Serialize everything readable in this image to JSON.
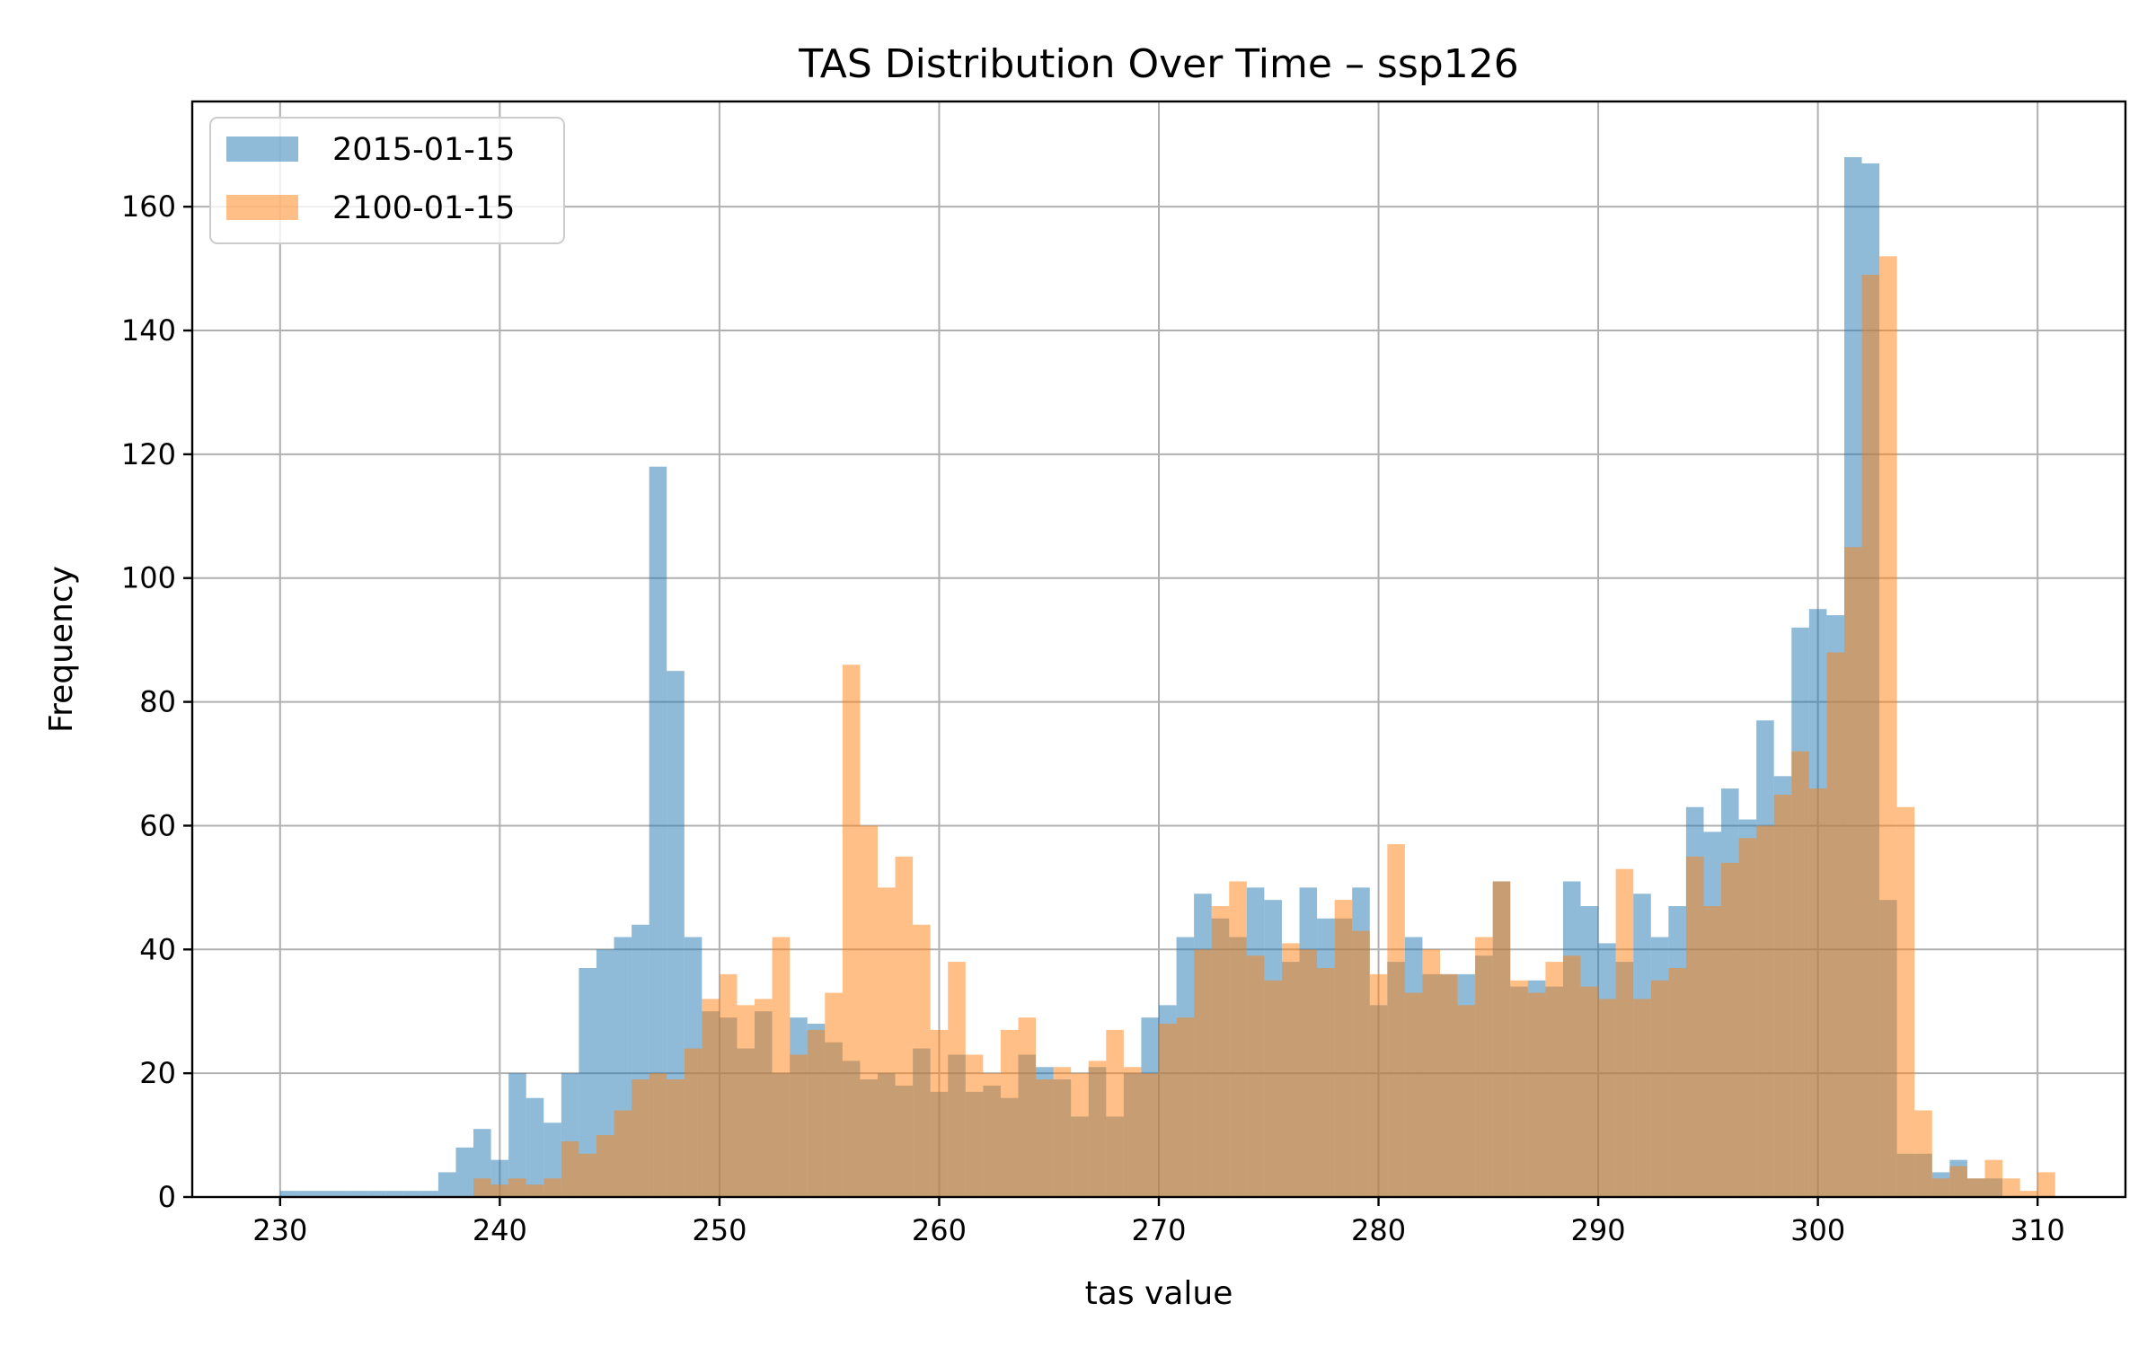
{
  "chart_data": {
    "type": "bar",
    "title": "TAS Distribution Over Time – ssp126",
    "xlabel": "tas value",
    "ylabel": "Frequency",
    "xlim": [
      226,
      314
    ],
    "ylim": [
      0,
      177
    ],
    "xticks": [
      230,
      240,
      250,
      260,
      270,
      280,
      290,
      300,
      310
    ],
    "yticks": [
      0,
      20,
      40,
      60,
      80,
      100,
      120,
      140,
      160
    ],
    "grid": true,
    "legend": "top-left",
    "bin_width": 0.8,
    "series": [
      {
        "name": "2015-01-15",
        "color": "#1f77b4",
        "opacity": 0.5,
        "bins": [
          {
            "x": 230.0,
            "y": 1
          },
          {
            "x": 230.8,
            "y": 1
          },
          {
            "x": 231.6,
            "y": 1
          },
          {
            "x": 232.4,
            "y": 1
          },
          {
            "x": 233.2,
            "y": 1
          },
          {
            "x": 234.0,
            "y": 1
          },
          {
            "x": 234.8,
            "y": 1
          },
          {
            "x": 235.6,
            "y": 1
          },
          {
            "x": 236.4,
            "y": 1
          },
          {
            "x": 237.2,
            "y": 4
          },
          {
            "x": 238.0,
            "y": 8
          },
          {
            "x": 238.8,
            "y": 11
          },
          {
            "x": 239.6,
            "y": 6
          },
          {
            "x": 240.4,
            "y": 20
          },
          {
            "x": 241.2,
            "y": 16
          },
          {
            "x": 242.0,
            "y": 12
          },
          {
            "x": 242.8,
            "y": 20
          },
          {
            "x": 243.6,
            "y": 37
          },
          {
            "x": 244.4,
            "y": 40
          },
          {
            "x": 245.2,
            "y": 42
          },
          {
            "x": 246.0,
            "y": 44
          },
          {
            "x": 246.8,
            "y": 118
          },
          {
            "x": 247.6,
            "y": 85
          },
          {
            "x": 248.4,
            "y": 42
          },
          {
            "x": 249.2,
            "y": 30
          },
          {
            "x": 250.0,
            "y": 29
          },
          {
            "x": 250.8,
            "y": 24
          },
          {
            "x": 251.6,
            "y": 30
          },
          {
            "x": 252.4,
            "y": 20
          },
          {
            "x": 253.2,
            "y": 29
          },
          {
            "x": 254.0,
            "y": 28
          },
          {
            "x": 254.8,
            "y": 25
          },
          {
            "x": 255.6,
            "y": 22
          },
          {
            "x": 256.4,
            "y": 19
          },
          {
            "x": 257.2,
            "y": 20
          },
          {
            "x": 258.0,
            "y": 18
          },
          {
            "x": 258.8,
            "y": 24
          },
          {
            "x": 259.6,
            "y": 17
          },
          {
            "x": 260.4,
            "y": 23
          },
          {
            "x": 261.2,
            "y": 17
          },
          {
            "x": 262.0,
            "y": 18
          },
          {
            "x": 262.8,
            "y": 16
          },
          {
            "x": 263.6,
            "y": 23
          },
          {
            "x": 264.4,
            "y": 21
          },
          {
            "x": 265.2,
            "y": 19
          },
          {
            "x": 266.0,
            "y": 13
          },
          {
            "x": 266.8,
            "y": 21
          },
          {
            "x": 267.6,
            "y": 13
          },
          {
            "x": 268.4,
            "y": 20
          },
          {
            "x": 269.2,
            "y": 29
          },
          {
            "x": 270.0,
            "y": 31
          },
          {
            "x": 270.8,
            "y": 42
          },
          {
            "x": 271.6,
            "y": 49
          },
          {
            "x": 272.4,
            "y": 45
          },
          {
            "x": 273.2,
            "y": 42
          },
          {
            "x": 274.0,
            "y": 50
          },
          {
            "x": 274.8,
            "y": 48
          },
          {
            "x": 275.6,
            "y": 38
          },
          {
            "x": 276.4,
            "y": 50
          },
          {
            "x": 277.2,
            "y": 45
          },
          {
            "x": 278.0,
            "y": 45
          },
          {
            "x": 278.8,
            "y": 50
          },
          {
            "x": 279.6,
            "y": 31
          },
          {
            "x": 280.4,
            "y": 38
          },
          {
            "x": 281.2,
            "y": 42
          },
          {
            "x": 282.0,
            "y": 36
          },
          {
            "x": 282.8,
            "y": 36
          },
          {
            "x": 283.6,
            "y": 36
          },
          {
            "x": 284.4,
            "y": 39
          },
          {
            "x": 285.2,
            "y": 51
          },
          {
            "x": 286.0,
            "y": 34
          },
          {
            "x": 286.8,
            "y": 35
          },
          {
            "x": 287.6,
            "y": 34
          },
          {
            "x": 288.4,
            "y": 51
          },
          {
            "x": 289.2,
            "y": 47
          },
          {
            "x": 290.0,
            "y": 41
          },
          {
            "x": 290.8,
            "y": 38
          },
          {
            "x": 291.6,
            "y": 49
          },
          {
            "x": 292.4,
            "y": 42
          },
          {
            "x": 293.2,
            "y": 47
          },
          {
            "x": 294.0,
            "y": 63
          },
          {
            "x": 294.8,
            "y": 59
          },
          {
            "x": 295.6,
            "y": 66
          },
          {
            "x": 296.4,
            "y": 61
          },
          {
            "x": 297.2,
            "y": 77
          },
          {
            "x": 298.0,
            "y": 68
          },
          {
            "x": 298.8,
            "y": 92
          },
          {
            "x": 299.6,
            "y": 95
          },
          {
            "x": 300.4,
            "y": 94
          },
          {
            "x": 301.2,
            "y": 168
          },
          {
            "x": 302.0,
            "y": 167
          },
          {
            "x": 302.8,
            "y": 48
          },
          {
            "x": 303.6,
            "y": 7
          },
          {
            "x": 304.4,
            "y": 7
          },
          {
            "x": 305.2,
            "y": 4
          },
          {
            "x": 306.0,
            "y": 6
          },
          {
            "x": 306.8,
            "y": 3
          },
          {
            "x": 307.6,
            "y": 3
          }
        ]
      },
      {
        "name": "2100-01-15",
        "color": "#ff7f0e",
        "opacity": 0.5,
        "bins": [
          {
            "x": 238.8,
            "y": 3
          },
          {
            "x": 239.6,
            "y": 2
          },
          {
            "x": 240.4,
            "y": 3
          },
          {
            "x": 241.2,
            "y": 2
          },
          {
            "x": 242.0,
            "y": 3
          },
          {
            "x": 242.8,
            "y": 9
          },
          {
            "x": 243.6,
            "y": 7
          },
          {
            "x": 244.4,
            "y": 10
          },
          {
            "x": 245.2,
            "y": 14
          },
          {
            "x": 246.0,
            "y": 19
          },
          {
            "x": 246.8,
            "y": 20
          },
          {
            "x": 247.6,
            "y": 19
          },
          {
            "x": 248.4,
            "y": 24
          },
          {
            "x": 249.2,
            "y": 32
          },
          {
            "x": 250.0,
            "y": 36
          },
          {
            "x": 250.8,
            "y": 31
          },
          {
            "x": 251.6,
            "y": 32
          },
          {
            "x": 252.4,
            "y": 42
          },
          {
            "x": 253.2,
            "y": 23
          },
          {
            "x": 254.0,
            "y": 27
          },
          {
            "x": 254.8,
            "y": 33
          },
          {
            "x": 255.6,
            "y": 86
          },
          {
            "x": 256.4,
            "y": 60
          },
          {
            "x": 257.2,
            "y": 50
          },
          {
            "x": 258.0,
            "y": 55
          },
          {
            "x": 258.8,
            "y": 44
          },
          {
            "x": 259.6,
            "y": 27
          },
          {
            "x": 260.4,
            "y": 38
          },
          {
            "x": 261.2,
            "y": 23
          },
          {
            "x": 262.0,
            "y": 20
          },
          {
            "x": 262.8,
            "y": 27
          },
          {
            "x": 263.6,
            "y": 29
          },
          {
            "x": 264.4,
            "y": 19
          },
          {
            "x": 265.2,
            "y": 21
          },
          {
            "x": 266.0,
            "y": 20
          },
          {
            "x": 266.8,
            "y": 22
          },
          {
            "x": 267.6,
            "y": 27
          },
          {
            "x": 268.4,
            "y": 21
          },
          {
            "x": 269.2,
            "y": 20
          },
          {
            "x": 270.0,
            "y": 28
          },
          {
            "x": 270.8,
            "y": 29
          },
          {
            "x": 271.6,
            "y": 40
          },
          {
            "x": 272.4,
            "y": 47
          },
          {
            "x": 273.2,
            "y": 51
          },
          {
            "x": 274.0,
            "y": 39
          },
          {
            "x": 274.8,
            "y": 35
          },
          {
            "x": 275.6,
            "y": 41
          },
          {
            "x": 276.4,
            "y": 40
          },
          {
            "x": 277.2,
            "y": 37
          },
          {
            "x": 278.0,
            "y": 48
          },
          {
            "x": 278.8,
            "y": 43
          },
          {
            "x": 279.6,
            "y": 36
          },
          {
            "x": 280.4,
            "y": 57
          },
          {
            "x": 281.2,
            "y": 33
          },
          {
            "x": 282.0,
            "y": 40
          },
          {
            "x": 282.8,
            "y": 36
          },
          {
            "x": 283.6,
            "y": 31
          },
          {
            "x": 284.4,
            "y": 42
          },
          {
            "x": 285.2,
            "y": 51
          },
          {
            "x": 286.0,
            "y": 35
          },
          {
            "x": 286.8,
            "y": 33
          },
          {
            "x": 287.6,
            "y": 38
          },
          {
            "x": 288.4,
            "y": 39
          },
          {
            "x": 289.2,
            "y": 34
          },
          {
            "x": 290.0,
            "y": 32
          },
          {
            "x": 290.8,
            "y": 53
          },
          {
            "x": 291.6,
            "y": 32
          },
          {
            "x": 292.4,
            "y": 35
          },
          {
            "x": 293.2,
            "y": 37
          },
          {
            "x": 294.0,
            "y": 55
          },
          {
            "x": 294.8,
            "y": 47
          },
          {
            "x": 295.6,
            "y": 54
          },
          {
            "x": 296.4,
            "y": 58
          },
          {
            "x": 297.2,
            "y": 60
          },
          {
            "x": 298.0,
            "y": 65
          },
          {
            "x": 298.8,
            "y": 72
          },
          {
            "x": 299.6,
            "y": 66
          },
          {
            "x": 300.4,
            "y": 88
          },
          {
            "x": 301.2,
            "y": 105
          },
          {
            "x": 302.0,
            "y": 149
          },
          {
            "x": 302.8,
            "y": 152
          },
          {
            "x": 303.6,
            "y": 63
          },
          {
            "x": 304.4,
            "y": 14
          },
          {
            "x": 305.2,
            "y": 3
          },
          {
            "x": 306.0,
            "y": 5
          },
          {
            "x": 306.8,
            "y": 3
          },
          {
            "x": 307.6,
            "y": 6
          },
          {
            "x": 308.4,
            "y": 3
          },
          {
            "x": 309.2,
            "y": 1
          },
          {
            "x": 310.0,
            "y": 4
          }
        ]
      }
    ]
  }
}
